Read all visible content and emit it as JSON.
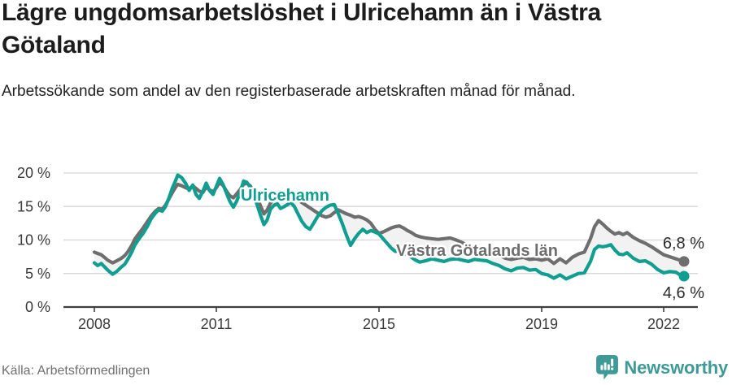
{
  "header": {
    "title": "Lägre ungdomsarbetslöshet i Ulricehamn än i Västra Götaland",
    "subtitle": "Arbetssökande som andel av den registerbaserade arbetskraften månad för månad."
  },
  "footer": {
    "source": "Källa: Arbetsförmedlingen",
    "brand": "Newsworthy"
  },
  "colors": {
    "ulricehamn": "#109e91",
    "region": "#6e6e6e",
    "fill_between": "#f2f2f2",
    "grid": "#dadada",
    "axis": "#3f3f3f",
    "tick_text": "#3a3a3a",
    "end_label_text": "#2b2b2b",
    "brand_teal": "#3e9a96",
    "title_text": "#1c1c1c"
  },
  "chart_data": {
    "type": "line",
    "title": "Lägre ungdomsarbetslöshet i Ulricehamn än i Västra Götaland",
    "xlabel": "",
    "ylabel": "",
    "unit": "%",
    "grid": "horizontal",
    "x_range": [
      2008,
      2022.55
    ],
    "y_range": [
      0,
      21
    ],
    "x_ticks": [
      2008,
      2011,
      2015,
      2019,
      2022
    ],
    "x_tick_labels": [
      "2008",
      "2011",
      "2015",
      "2019",
      "2022"
    ],
    "y_ticks": [
      0,
      5,
      10,
      15,
      20
    ],
    "y_tick_labels": [
      "0 %",
      "5 %",
      "10 %",
      "15 %",
      "20 %"
    ],
    "legend_position": "inline-labels",
    "series": [
      {
        "name": "Ulricehamn",
        "color": "#109e91",
        "end_value": 4.6,
        "end_label": "4,6 %",
        "points": [
          [
            2008.0,
            6.6
          ],
          [
            2008.08,
            6.2
          ],
          [
            2008.17,
            6.5
          ],
          [
            2008.25,
            6.0
          ],
          [
            2008.33,
            5.5
          ],
          [
            2008.45,
            4.9
          ],
          [
            2008.55,
            5.3
          ],
          [
            2008.67,
            6.0
          ],
          [
            2008.75,
            6.4
          ],
          [
            2008.83,
            7.2
          ],
          [
            2008.92,
            8.2
          ],
          [
            2009.0,
            9.3
          ],
          [
            2009.1,
            10.2
          ],
          [
            2009.2,
            11.0
          ],
          [
            2009.3,
            12.0
          ],
          [
            2009.4,
            13.2
          ],
          [
            2009.5,
            14.0
          ],
          [
            2009.58,
            14.5
          ],
          [
            2009.67,
            14.3
          ],
          [
            2009.75,
            15.0
          ],
          [
            2009.83,
            16.2
          ],
          [
            2009.92,
            17.8
          ],
          [
            2010.0,
            18.9
          ],
          [
            2010.05,
            19.7
          ],
          [
            2010.15,
            19.3
          ],
          [
            2010.25,
            18.4
          ],
          [
            2010.33,
            17.4
          ],
          [
            2010.42,
            18.2
          ],
          [
            2010.5,
            16.8
          ],
          [
            2010.58,
            16.2
          ],
          [
            2010.67,
            17.3
          ],
          [
            2010.75,
            18.5
          ],
          [
            2010.83,
            17.4
          ],
          [
            2010.92,
            16.8
          ],
          [
            2011.0,
            18.0
          ],
          [
            2011.08,
            19.2
          ],
          [
            2011.17,
            18.2
          ],
          [
            2011.25,
            17.0
          ],
          [
            2011.33,
            15.8
          ],
          [
            2011.42,
            14.9
          ],
          [
            2011.5,
            15.8
          ],
          [
            2011.58,
            17.0
          ],
          [
            2011.67,
            18.8
          ],
          [
            2011.75,
            18.6
          ],
          [
            2011.83,
            17.9
          ],
          [
            2011.92,
            16.8
          ],
          [
            2012.0,
            15.3
          ],
          [
            2012.08,
            13.8
          ],
          [
            2012.17,
            12.3
          ],
          [
            2012.25,
            13.0
          ],
          [
            2012.33,
            14.6
          ],
          [
            2012.42,
            15.2
          ],
          [
            2012.5,
            15.4
          ],
          [
            2012.58,
            14.7
          ],
          [
            2012.67,
            15.0
          ],
          [
            2012.75,
            15.3
          ],
          [
            2012.83,
            15.6
          ],
          [
            2012.92,
            15.0
          ],
          [
            2013.0,
            14.0
          ],
          [
            2013.1,
            12.8
          ],
          [
            2013.2,
            12.0
          ],
          [
            2013.3,
            11.6
          ],
          [
            2013.4,
            12.6
          ],
          [
            2013.5,
            13.6
          ],
          [
            2013.6,
            14.4
          ],
          [
            2013.7,
            14.9
          ],
          [
            2013.8,
            15.2
          ],
          [
            2013.9,
            15.3
          ],
          [
            2014.0,
            13.9
          ],
          [
            2014.1,
            12.4
          ],
          [
            2014.2,
            10.7
          ],
          [
            2014.3,
            9.2
          ],
          [
            2014.4,
            10.2
          ],
          [
            2014.5,
            11.0
          ],
          [
            2014.6,
            11.6
          ],
          [
            2014.7,
            11.1
          ],
          [
            2014.8,
            11.4
          ],
          [
            2014.9,
            11.2
          ],
          [
            2015.0,
            10.9
          ],
          [
            2015.1,
            10.2
          ],
          [
            2015.2,
            9.5
          ],
          [
            2015.3,
            8.8
          ],
          [
            2015.4,
            8.3
          ],
          [
            2015.5,
            8.4
          ],
          [
            2015.6,
            8.2
          ],
          [
            2015.7,
            7.8
          ],
          [
            2015.8,
            7.4
          ],
          [
            2015.9,
            7.0
          ],
          [
            2016.0,
            6.7
          ],
          [
            2016.15,
            6.9
          ],
          [
            2016.3,
            7.2
          ],
          [
            2016.45,
            7.0
          ],
          [
            2016.6,
            6.8
          ],
          [
            2016.75,
            7.1
          ],
          [
            2016.9,
            7.2
          ],
          [
            2017.05,
            7.0
          ],
          [
            2017.2,
            6.8
          ],
          [
            2017.35,
            7.1
          ],
          [
            2017.5,
            7.0
          ],
          [
            2017.65,
            6.9
          ],
          [
            2017.8,
            6.5
          ],
          [
            2017.95,
            6.2
          ],
          [
            2018.1,
            5.7
          ],
          [
            2018.25,
            5.4
          ],
          [
            2018.4,
            5.8
          ],
          [
            2018.55,
            5.9
          ],
          [
            2018.7,
            5.5
          ],
          [
            2018.85,
            5.6
          ],
          [
            2019.0,
            5.0
          ],
          [
            2019.15,
            4.8
          ],
          [
            2019.3,
            4.3
          ],
          [
            2019.45,
            4.8
          ],
          [
            2019.6,
            4.2
          ],
          [
            2019.75,
            4.6
          ],
          [
            2019.9,
            5.0
          ],
          [
            2020.05,
            5.1
          ],
          [
            2020.2,
            6.8
          ],
          [
            2020.3,
            8.6
          ],
          [
            2020.4,
            9.1
          ],
          [
            2020.5,
            9.0
          ],
          [
            2020.6,
            9.1
          ],
          [
            2020.7,
            9.3
          ],
          [
            2020.8,
            8.5
          ],
          [
            2020.9,
            7.9
          ],
          [
            2021.0,
            7.8
          ],
          [
            2021.1,
            8.1
          ],
          [
            2021.25,
            7.3
          ],
          [
            2021.4,
            6.8
          ],
          [
            2021.55,
            6.9
          ],
          [
            2021.7,
            6.4
          ],
          [
            2021.85,
            5.6
          ],
          [
            2022.0,
            5.1
          ],
          [
            2022.15,
            5.3
          ],
          [
            2022.3,
            5.2
          ],
          [
            2022.4,
            4.8
          ],
          [
            2022.5,
            4.6
          ]
        ]
      },
      {
        "name": "Västra Götalands län",
        "color": "#6e6e6e",
        "end_value": 6.8,
        "end_label": "6,8 %",
        "points": [
          [
            2008.0,
            8.2
          ],
          [
            2008.08,
            8.0
          ],
          [
            2008.17,
            7.8
          ],
          [
            2008.25,
            7.4
          ],
          [
            2008.33,
            7.0
          ],
          [
            2008.45,
            6.6
          ],
          [
            2008.55,
            6.9
          ],
          [
            2008.67,
            7.3
          ],
          [
            2008.75,
            7.7
          ],
          [
            2008.83,
            8.3
          ],
          [
            2008.92,
            9.2
          ],
          [
            2009.0,
            10.2
          ],
          [
            2009.1,
            11.0
          ],
          [
            2009.2,
            11.8
          ],
          [
            2009.3,
            12.7
          ],
          [
            2009.4,
            13.6
          ],
          [
            2009.5,
            14.3
          ],
          [
            2009.58,
            14.7
          ],
          [
            2009.67,
            14.6
          ],
          [
            2009.75,
            15.2
          ],
          [
            2009.83,
            16.1
          ],
          [
            2009.92,
            17.1
          ],
          [
            2010.0,
            17.9
          ],
          [
            2010.05,
            18.3
          ],
          [
            2010.15,
            18.1
          ],
          [
            2010.25,
            17.8
          ],
          [
            2010.33,
            17.6
          ],
          [
            2010.42,
            18.1
          ],
          [
            2010.5,
            17.7
          ],
          [
            2010.58,
            17.3
          ],
          [
            2010.67,
            17.1
          ],
          [
            2010.75,
            17.9
          ],
          [
            2010.83,
            17.5
          ],
          [
            2010.92,
            17.2
          ],
          [
            2011.0,
            17.8
          ],
          [
            2011.08,
            18.6
          ],
          [
            2011.17,
            18.1
          ],
          [
            2011.25,
            17.3
          ],
          [
            2011.33,
            16.6
          ],
          [
            2011.42,
            16.3
          ],
          [
            2011.5,
            16.9
          ],
          [
            2011.58,
            17.5
          ],
          [
            2011.67,
            18.3
          ],
          [
            2011.75,
            18.5
          ],
          [
            2011.83,
            18.1
          ],
          [
            2011.92,
            17.3
          ],
          [
            2012.0,
            16.4
          ],
          [
            2012.08,
            15.2
          ],
          [
            2012.17,
            13.9
          ],
          [
            2012.25,
            14.5
          ],
          [
            2012.33,
            15.5
          ],
          [
            2012.42,
            16.1
          ],
          [
            2012.5,
            16.5
          ],
          [
            2012.58,
            16.1
          ],
          [
            2012.67,
            16.3
          ],
          [
            2012.75,
            16.6
          ],
          [
            2012.83,
            16.8
          ],
          [
            2012.92,
            16.5
          ],
          [
            2013.0,
            16.1
          ],
          [
            2013.1,
            15.6
          ],
          [
            2013.2,
            15.2
          ],
          [
            2013.3,
            14.8
          ],
          [
            2013.4,
            14.4
          ],
          [
            2013.5,
            14.0
          ],
          [
            2013.6,
            13.6
          ],
          [
            2013.7,
            13.4
          ],
          [
            2013.8,
            13.6
          ],
          [
            2013.9,
            14.1
          ],
          [
            2014.0,
            14.5
          ],
          [
            2014.1,
            14.2
          ],
          [
            2014.2,
            13.9
          ],
          [
            2014.3,
            13.7
          ],
          [
            2014.4,
            13.4
          ],
          [
            2014.5,
            13.5
          ],
          [
            2014.6,
            13.3
          ],
          [
            2014.7,
            13.0
          ],
          [
            2014.8,
            12.5
          ],
          [
            2014.9,
            11.6
          ],
          [
            2015.0,
            11.0
          ],
          [
            2015.1,
            11.2
          ],
          [
            2015.2,
            11.5
          ],
          [
            2015.3,
            11.8
          ],
          [
            2015.4,
            12.0
          ],
          [
            2015.5,
            12.1
          ],
          [
            2015.6,
            11.8
          ],
          [
            2015.7,
            11.4
          ],
          [
            2015.8,
            11.1
          ],
          [
            2015.9,
            10.7
          ],
          [
            2016.0,
            10.5
          ],
          [
            2016.15,
            10.3
          ],
          [
            2016.3,
            10.2
          ],
          [
            2016.45,
            10.1
          ],
          [
            2016.6,
            10.2
          ],
          [
            2016.75,
            10.3
          ],
          [
            2016.9,
            10.0
          ],
          [
            2017.05,
            9.6
          ],
          [
            2017.2,
            9.2
          ],
          [
            2017.35,
            8.9
          ],
          [
            2017.5,
            8.7
          ],
          [
            2017.65,
            8.5
          ],
          [
            2017.8,
            8.2
          ],
          [
            2017.95,
            7.8
          ],
          [
            2018.1,
            7.3
          ],
          [
            2018.25,
            7.1
          ],
          [
            2018.4,
            7.3
          ],
          [
            2018.55,
            7.4
          ],
          [
            2018.7,
            7.1
          ],
          [
            2018.85,
            7.2
          ],
          [
            2019.0,
            7.0
          ],
          [
            2019.15,
            7.2
          ],
          [
            2019.3,
            6.5
          ],
          [
            2019.45,
            7.2
          ],
          [
            2019.6,
            6.6
          ],
          [
            2019.75,
            7.4
          ],
          [
            2019.9,
            7.9
          ],
          [
            2020.05,
            8.2
          ],
          [
            2020.2,
            10.2
          ],
          [
            2020.3,
            12.0
          ],
          [
            2020.4,
            12.9
          ],
          [
            2020.5,
            12.4
          ],
          [
            2020.6,
            11.8
          ],
          [
            2020.7,
            11.3
          ],
          [
            2020.8,
            10.9
          ],
          [
            2020.9,
            11.1
          ],
          [
            2021.0,
            10.8
          ],
          [
            2021.1,
            11.1
          ],
          [
            2021.25,
            10.4
          ],
          [
            2021.4,
            9.9
          ],
          [
            2021.55,
            9.5
          ],
          [
            2021.7,
            9.0
          ],
          [
            2021.85,
            8.4
          ],
          [
            2022.0,
            7.8
          ],
          [
            2022.15,
            7.5
          ],
          [
            2022.3,
            7.2
          ],
          [
            2022.4,
            7.0
          ],
          [
            2022.5,
            6.8
          ]
        ]
      }
    ]
  }
}
